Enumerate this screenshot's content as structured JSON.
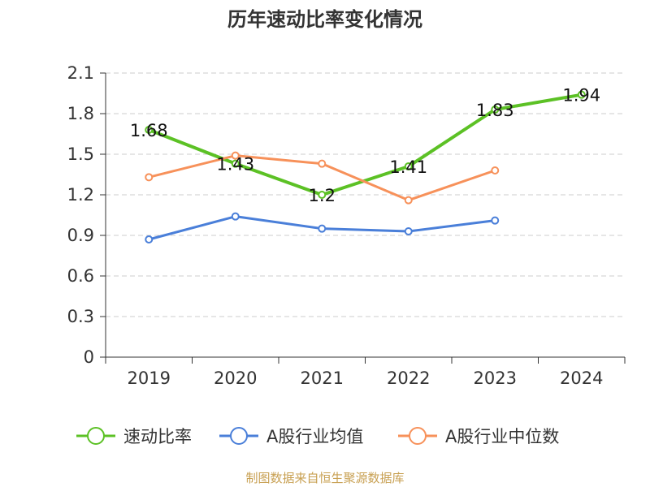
{
  "chart_data": {
    "type": "line",
    "title": "历年速动比率变化情况",
    "categories": [
      "2019",
      "2020",
      "2021",
      "2022",
      "2023",
      "2024"
    ],
    "ylim": [
      0,
      2.1
    ],
    "yticks": [
      "0",
      "0.3",
      "0.6",
      "0.9",
      "1.2",
      "1.5",
      "1.8",
      "2.1"
    ],
    "grid": true,
    "legend_position": "bottom",
    "series": [
      {
        "name": "速动比率",
        "color": "#5cc125",
        "values": [
          1.68,
          1.43,
          1.2,
          1.41,
          1.83,
          1.94
        ],
        "labels": [
          "1.68",
          "1.43",
          "1.2",
          "1.41",
          "1.83",
          "1.94"
        ]
      },
      {
        "name": "A股行业均值",
        "color": "#4a7fd9",
        "values": [
          0.87,
          1.04,
          0.95,
          0.93,
          1.01,
          null
        ]
      },
      {
        "name": "A股行业中位数",
        "color": "#f7915a",
        "values": [
          1.33,
          1.49,
          1.43,
          1.16,
          1.38,
          null
        ]
      }
    ],
    "source": "制图数据来自恒生聚源数据库"
  }
}
